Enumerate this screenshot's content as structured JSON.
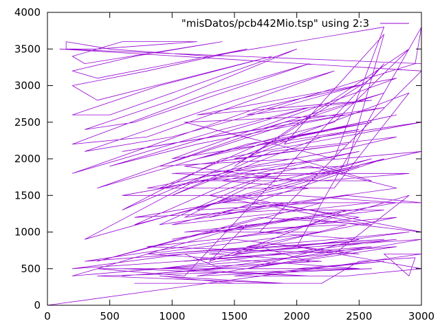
{
  "chart_data": {
    "type": "line",
    "title": "",
    "xlabel": "",
    "ylabel": "",
    "xlim": [
      0,
      3000
    ],
    "ylim": [
      0,
      4000
    ],
    "x_ticks": [
      0,
      500,
      1000,
      1500,
      2000,
      2500,
      3000
    ],
    "y_ticks": [
      0,
      500,
      1000,
      1500,
      2000,
      2500,
      3000,
      3500,
      4000
    ],
    "grid": false,
    "legend_position": "top-right",
    "series": [
      {
        "name": "\"misDatos/pcb442Mio.tsp\" using 2:3",
        "color": "#9400d3",
        "points": [
          [
            0,
            0
          ],
          [
            3000,
            700
          ],
          [
            2700,
            700
          ],
          [
            2900,
            400
          ],
          [
            2950,
            650
          ],
          [
            2500,
            600
          ],
          [
            2200,
            300
          ],
          [
            700,
            300
          ],
          [
            1500,
            300
          ],
          [
            900,
            400
          ],
          [
            1900,
            300
          ],
          [
            400,
            400
          ],
          [
            2600,
            500
          ],
          [
            1200,
            400
          ],
          [
            2800,
            800
          ],
          [
            200,
            500
          ],
          [
            1100,
            700
          ],
          [
            1400,
            500
          ],
          [
            600,
            400
          ],
          [
            2100,
            600
          ],
          [
            1700,
            800
          ],
          [
            900,
            700
          ],
          [
            2700,
            900
          ],
          [
            300,
            600
          ],
          [
            1500,
            900
          ],
          [
            2500,
            700
          ],
          [
            800,
            800
          ],
          [
            1900,
            1000
          ],
          [
            2900,
            1500
          ],
          [
            2300,
            700
          ],
          [
            200,
            400
          ],
          [
            1600,
            1100
          ],
          [
            1300,
            600
          ],
          [
            1800,
            900
          ],
          [
            2400,
            1300
          ],
          [
            1000,
            900
          ],
          [
            2000,
            1200
          ],
          [
            3000,
            1000
          ],
          [
            1500,
            1500
          ],
          [
            1200,
            1300
          ],
          [
            2200,
            1400
          ],
          [
            400,
            600
          ],
          [
            1700,
            1200
          ],
          [
            2600,
            1100
          ],
          [
            1300,
            1500
          ],
          [
            1800,
            1800
          ],
          [
            900,
            1100
          ],
          [
            2400,
            1500
          ],
          [
            3000,
            1400
          ],
          [
            1400,
            1400
          ],
          [
            1900,
            1600
          ],
          [
            2500,
            1900
          ],
          [
            700,
            1100
          ],
          [
            1500,
            1700
          ],
          [
            2100,
            1900
          ],
          [
            2800,
            1600
          ],
          [
            1100,
            1200
          ],
          [
            1600,
            1600
          ],
          [
            2600,
            2000
          ],
          [
            300,
            900
          ],
          [
            1300,
            1800
          ],
          [
            2300,
            2100
          ],
          [
            2800,
            2300
          ],
          [
            1800,
            2100
          ],
          [
            1000,
            1500
          ],
          [
            2200,
            2300
          ],
          [
            3000,
            2500
          ],
          [
            1400,
            2000
          ],
          [
            600,
            1300
          ],
          [
            2000,
            2300
          ],
          [
            2600,
            2500
          ],
          [
            1600,
            2200
          ],
          [
            400,
            1600
          ],
          [
            1900,
            2500
          ],
          [
            2700,
            2700
          ],
          [
            1200,
            2200
          ],
          [
            500,
            1900
          ],
          [
            2100,
            2700
          ],
          [
            1400,
            2400
          ],
          [
            200,
            1800
          ],
          [
            1700,
            2700
          ],
          [
            2500,
            3000
          ],
          [
            1000,
            2300
          ],
          [
            300,
            2100
          ],
          [
            1500,
            2800
          ],
          [
            2300,
            3200
          ],
          [
            800,
            2300
          ],
          [
            200,
            2200
          ],
          [
            1300,
            2900
          ],
          [
            2100,
            3300
          ],
          [
            700,
            2500
          ],
          [
            300,
            2400
          ],
          [
            1000,
            2800
          ],
          [
            2000,
            3500
          ],
          [
            500,
            2600
          ],
          [
            200,
            2600
          ],
          [
            900,
            3000
          ],
          [
            1800,
            3400
          ],
          [
            400,
            2800
          ],
          [
            200,
            3000
          ],
          [
            800,
            3200
          ],
          [
            1600,
            3500
          ],
          [
            400,
            3100
          ],
          [
            200,
            3200
          ],
          [
            700,
            3400
          ],
          [
            1400,
            3600
          ],
          [
            300,
            3300
          ],
          [
            200,
            3400
          ],
          [
            600,
            3600
          ],
          [
            1200,
            3600
          ],
          [
            400,
            3500
          ],
          [
            150,
            3500
          ],
          [
            150,
            3600
          ],
          [
            500,
            3500
          ],
          [
            1300,
            3400
          ],
          [
            2700,
            3800
          ],
          [
            2300,
            2000
          ],
          [
            1100,
            2500
          ],
          [
            2400,
            2600
          ],
          [
            600,
            2100
          ],
          [
            1700,
            2400
          ],
          [
            2700,
            2900
          ],
          [
            900,
            1900
          ],
          [
            2000,
            2000
          ],
          [
            2600,
            1700
          ],
          [
            1200,
            1700
          ],
          [
            2200,
            1800
          ],
          [
            3000,
            2100
          ],
          [
            1700,
            1900
          ],
          [
            800,
            1600
          ],
          [
            2300,
            1600
          ],
          [
            2900,
            2900
          ],
          [
            1500,
            2000
          ],
          [
            2400,
            2200
          ],
          [
            1100,
            1900
          ],
          [
            2000,
            1700
          ],
          [
            2700,
            2000
          ],
          [
            1300,
            1200
          ],
          [
            1900,
            1400
          ],
          [
            2600,
            1400
          ],
          [
            1000,
            1100
          ],
          [
            1700,
            1400
          ],
          [
            2500,
            1200
          ],
          [
            1400,
            900
          ],
          [
            2100,
            1100
          ],
          [
            2800,
            1200
          ],
          [
            1600,
            800
          ],
          [
            2300,
            900
          ],
          [
            2900,
            1000
          ],
          [
            1100,
            600
          ],
          [
            1800,
            700
          ],
          [
            2600,
            800
          ],
          [
            1300,
            500
          ],
          [
            2000,
            500
          ],
          [
            2700,
            600
          ],
          [
            1500,
            400
          ],
          [
            2400,
            400
          ],
          [
            3000,
            500
          ],
          [
            2000,
            800
          ],
          [
            3000,
            3800
          ],
          [
            2950,
            3300
          ],
          [
            1600,
            2600
          ],
          [
            2600,
            2800
          ],
          [
            1200,
            2600
          ],
          [
            2800,
            3100
          ],
          [
            1000,
            2000
          ],
          [
            2500,
            2400
          ],
          [
            1900,
            2200
          ],
          [
            2700,
            3700
          ],
          [
            2400,
            1900
          ],
          [
            1000,
            1800
          ],
          [
            2200,
            1700
          ],
          [
            2900,
            1800
          ],
          [
            1600,
            1800
          ],
          [
            600,
            1500
          ],
          [
            2000,
            1500
          ],
          [
            2800,
            1400
          ],
          [
            1400,
            1000
          ],
          [
            2200,
            1000
          ],
          [
            800,
            700
          ],
          [
            1700,
            600
          ],
          [
            2500,
            500
          ],
          [
            1000,
            500
          ],
          [
            2100,
            400
          ],
          [
            600,
            500
          ],
          [
            1800,
            500
          ],
          [
            400,
            500
          ],
          [
            1100,
            400
          ],
          [
            2700,
            3300
          ],
          [
            2600,
            3100
          ],
          [
            1500,
            1900
          ],
          [
            2900,
            3500
          ],
          [
            2300,
            2500
          ],
          [
            1200,
            2000
          ],
          [
            2800,
            2600
          ],
          [
            1700,
            2200
          ],
          [
            900,
            1600
          ],
          [
            2500,
            2100
          ],
          [
            1400,
            1700
          ],
          [
            2100,
            1600
          ],
          [
            700,
            1200
          ],
          [
            1900,
            1300
          ],
          [
            2700,
            1300
          ],
          [
            1100,
            1000
          ],
          [
            2400,
            1100
          ],
          [
            1500,
            700
          ],
          [
            2800,
            900
          ],
          [
            900,
            500
          ],
          [
            2200,
            600
          ],
          [
            1300,
            700
          ],
          [
            3000,
            900
          ],
          [
            1600,
            500
          ],
          [
            2500,
            900
          ],
          [
            1700,
            1000
          ],
          [
            3000,
            3200
          ],
          [
            100,
            3500
          ],
          [
            3000,
            3300
          ],
          [
            3000,
            0
          ]
        ]
      }
    ]
  }
}
